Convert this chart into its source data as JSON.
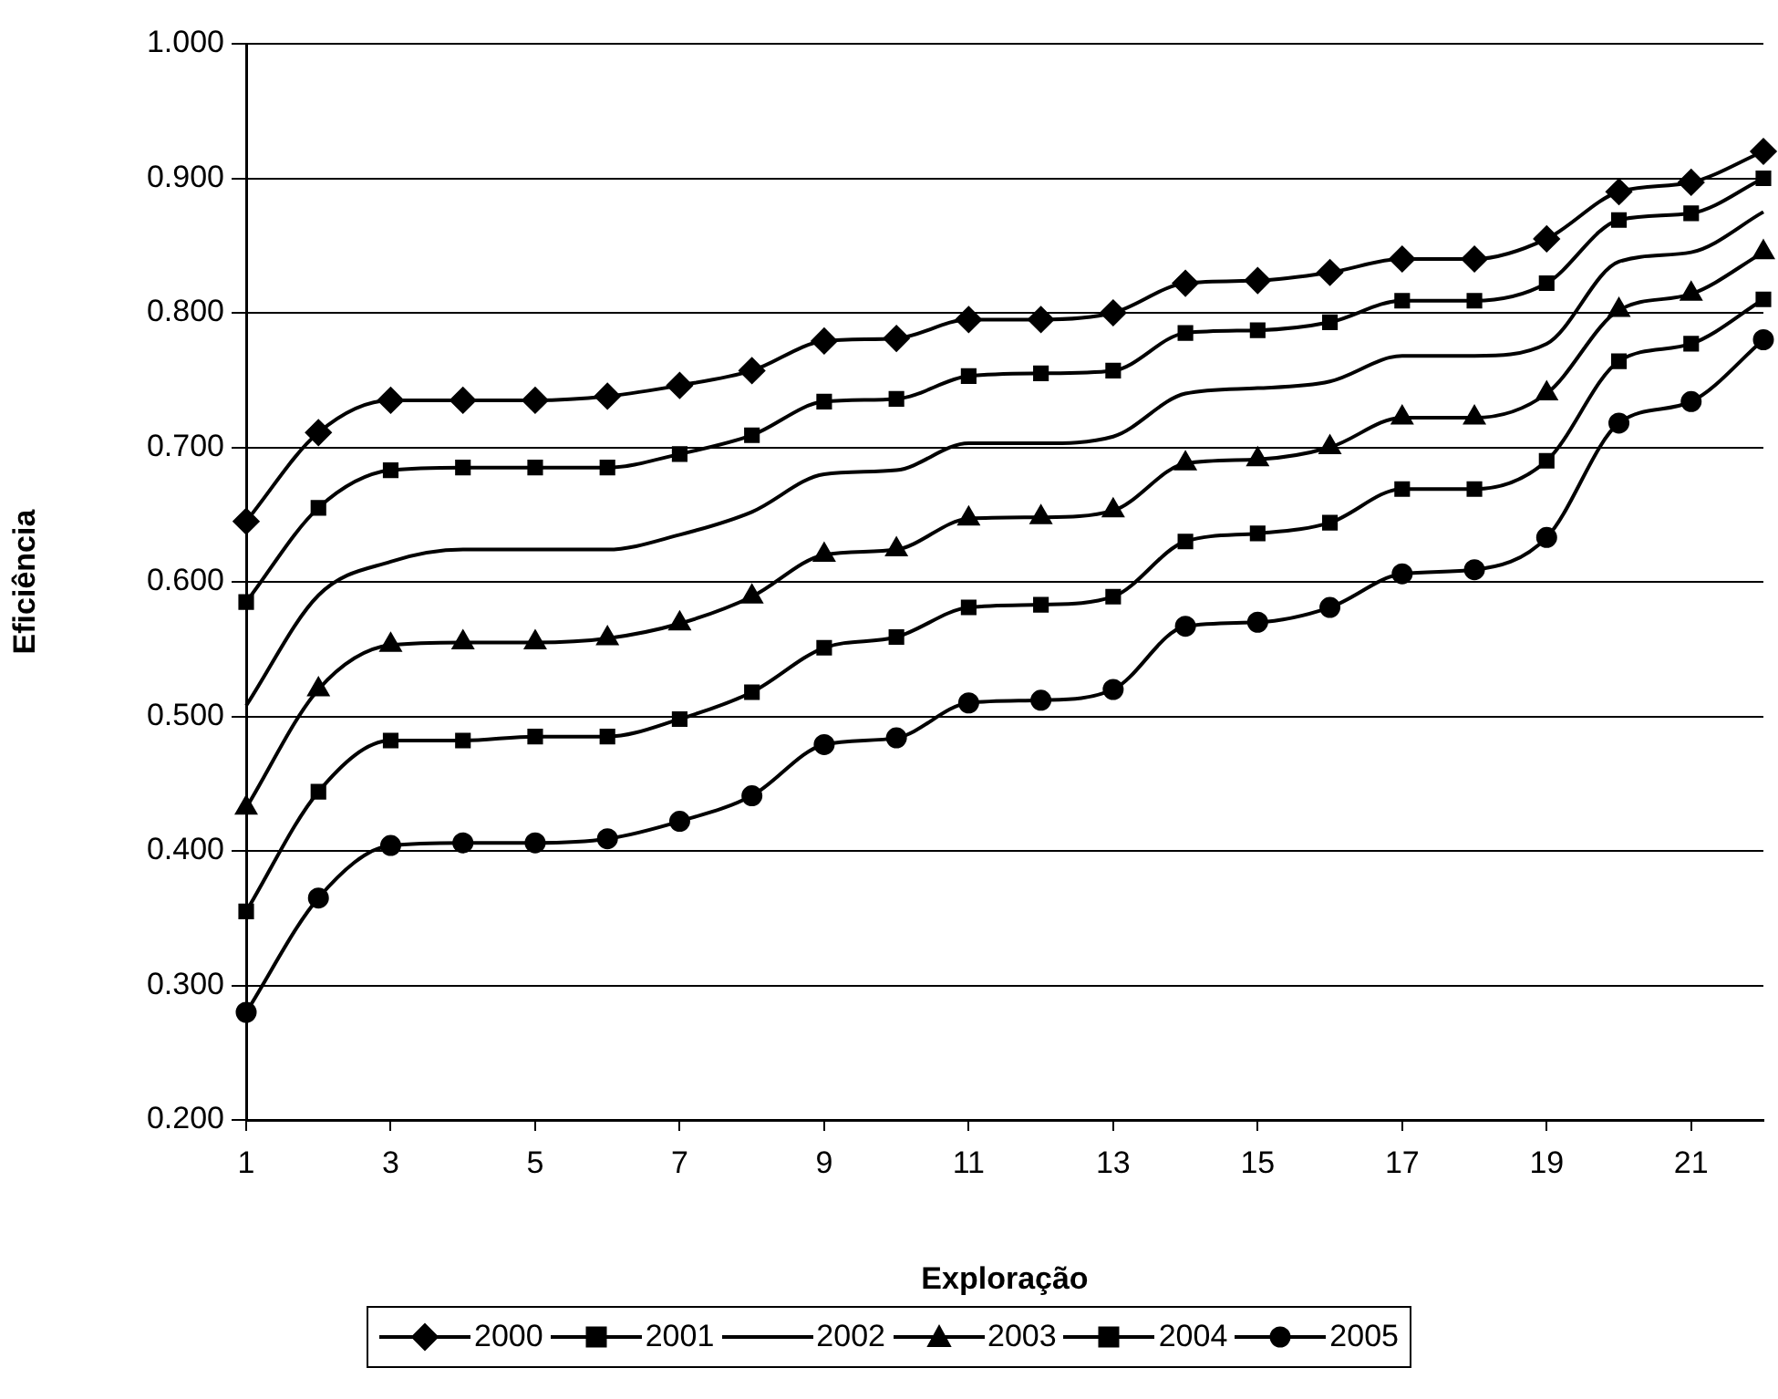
{
  "chart_data": {
    "type": "line",
    "xlabel": "Exploração",
    "ylabel": "Eficiência",
    "x": [
      1,
      2,
      3,
      4,
      5,
      6,
      7,
      8,
      9,
      10,
      11,
      12,
      13,
      14,
      15,
      16,
      17,
      18,
      19,
      20,
      21,
      22
    ],
    "xlim": [
      1,
      22
    ],
    "xticks": [
      1,
      3,
      5,
      7,
      9,
      11,
      13,
      15,
      17,
      19,
      21
    ],
    "ylim": [
      0.2,
      1.0
    ],
    "yticks": [
      {
        "value": 0.2,
        "label": "0.200"
      },
      {
        "value": 0.3,
        "label": "0.300"
      },
      {
        "value": 0.4,
        "label": "0.400"
      },
      {
        "value": 0.5,
        "label": "0.500"
      },
      {
        "value": 0.6,
        "label": "0.600"
      },
      {
        "value": 0.7,
        "label": "0.700"
      },
      {
        "value": 0.8,
        "label": "0.800"
      },
      {
        "value": 0.9,
        "label": "0.900"
      },
      {
        "value": 1.0,
        "label": "1.000"
      }
    ],
    "grid": "y",
    "legend": "bottom",
    "line_style": "solid",
    "series": [
      {
        "name": "2000",
        "color": "#000000",
        "marker": "diamond",
        "values": [
          0.645,
          0.711,
          0.735,
          0.735,
          0.735,
          0.738,
          0.746,
          0.757,
          0.779,
          0.781,
          0.795,
          0.795,
          0.8,
          0.822,
          0.824,
          0.83,
          0.84,
          0.84,
          0.855,
          0.89,
          0.897,
          0.92
        ]
      },
      {
        "name": "2001",
        "color": "#000000",
        "marker": "square",
        "values": [
          0.585,
          0.655,
          0.683,
          0.685,
          0.685,
          0.685,
          0.695,
          0.709,
          0.734,
          0.736,
          0.753,
          0.755,
          0.757,
          0.785,
          0.787,
          0.793,
          0.809,
          0.809,
          0.822,
          0.869,
          0.874,
          0.9
        ]
      },
      {
        "name": "2002",
        "color": "#000000",
        "marker": "none",
        "values": [
          0.508,
          0.59,
          0.615,
          0.624,
          0.624,
          0.624,
          0.635,
          0.652,
          0.68,
          0.683,
          0.703,
          0.703,
          0.708,
          0.74,
          0.744,
          0.749,
          0.768,
          0.768,
          0.777,
          0.838,
          0.845,
          0.875
        ]
      },
      {
        "name": "2003",
        "color": "#000000",
        "marker": "triangle",
        "values": [
          0.432,
          0.52,
          0.553,
          0.555,
          0.555,
          0.558,
          0.569,
          0.589,
          0.62,
          0.624,
          0.647,
          0.648,
          0.653,
          0.688,
          0.691,
          0.7,
          0.722,
          0.722,
          0.74,
          0.802,
          0.814,
          0.845
        ]
      },
      {
        "name": "2004",
        "color": "#000000",
        "marker": "square",
        "values": [
          0.355,
          0.444,
          0.482,
          0.482,
          0.485,
          0.485,
          0.498,
          0.518,
          0.551,
          0.559,
          0.581,
          0.583,
          0.589,
          0.63,
          0.636,
          0.644,
          0.669,
          0.669,
          0.69,
          0.764,
          0.777,
          0.81
        ]
      },
      {
        "name": "2005",
        "color": "#000000",
        "marker": "circle",
        "values": [
          0.28,
          0.365,
          0.404,
          0.406,
          0.406,
          0.409,
          0.422,
          0.441,
          0.479,
          0.484,
          0.51,
          0.512,
          0.52,
          0.567,
          0.57,
          0.581,
          0.606,
          0.609,
          0.633,
          0.718,
          0.734,
          0.78
        ]
      }
    ]
  }
}
